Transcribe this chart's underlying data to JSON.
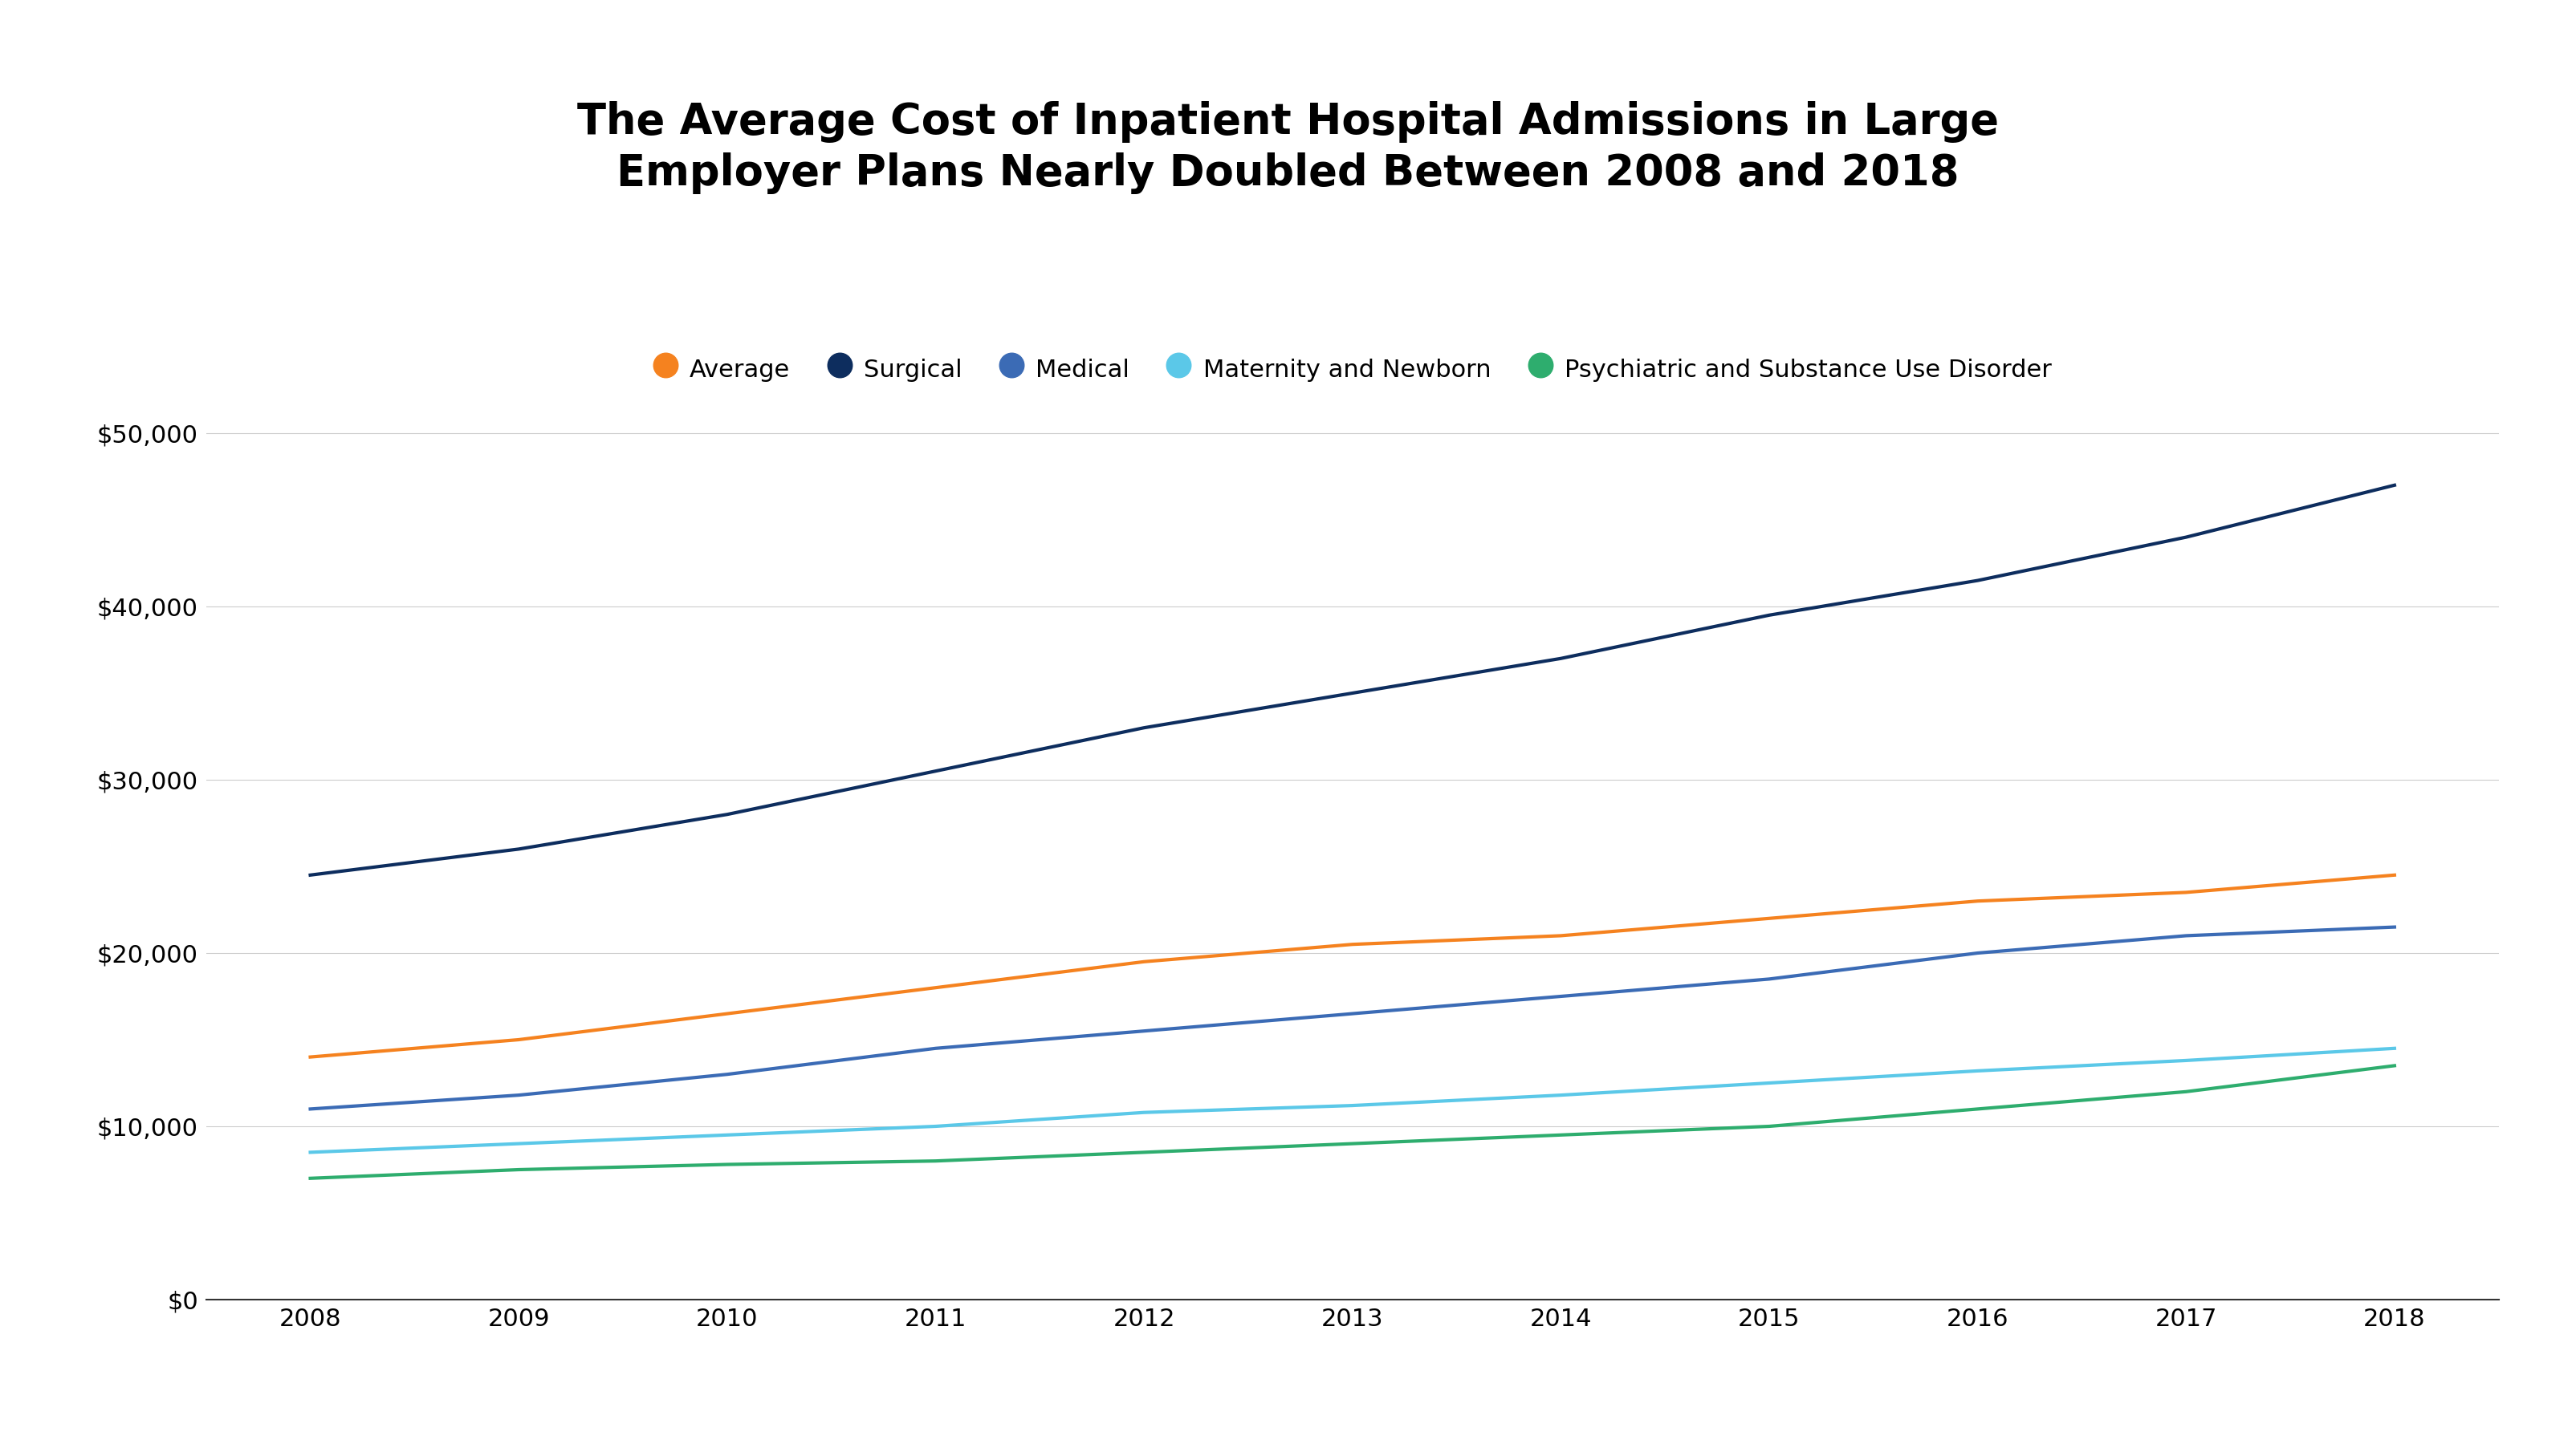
{
  "title": "The Average Cost of Inpatient Hospital Admissions in Large\nEmployer Plans Nearly Doubled Between 2008 and 2018",
  "years": [
    2008,
    2009,
    2010,
    2011,
    2012,
    2013,
    2014,
    2015,
    2016,
    2017,
    2018
  ],
  "series": {
    "Average": {
      "color": "#F5821F",
      "values": [
        14000,
        15000,
        16500,
        18000,
        19500,
        20500,
        21000,
        22000,
        23000,
        23500,
        24500
      ]
    },
    "Surgical": {
      "color": "#0D2D5E",
      "values": [
        24500,
        26000,
        28000,
        30500,
        33000,
        35000,
        37000,
        39500,
        41500,
        44000,
        47000
      ]
    },
    "Medical": {
      "color": "#3B6BB5",
      "values": [
        11000,
        11800,
        13000,
        14500,
        15500,
        16500,
        17500,
        18500,
        20000,
        21000,
        21500
      ]
    },
    "Maternity and Newborn": {
      "color": "#5BC8E8",
      "values": [
        8500,
        9000,
        9500,
        10000,
        10800,
        11200,
        11800,
        12500,
        13200,
        13800,
        14500
      ]
    },
    "Psychiatric and Substance Use Disorder": {
      "color": "#2EAD6E",
      "values": [
        7000,
        7500,
        7800,
        8000,
        8500,
        9000,
        9500,
        10000,
        11000,
        12000,
        13500
      ]
    }
  },
  "series_order": [
    "Average",
    "Surgical",
    "Medical",
    "Maternity and Newborn",
    "Psychiatric and Substance Use Disorder"
  ],
  "ylim": [
    0,
    55000
  ],
  "yticks": [
    0,
    10000,
    20000,
    30000,
    40000,
    50000
  ],
  "xlim": [
    2007.5,
    2018.5
  ],
  "background_color": "#ffffff",
  "line_width": 3.0,
  "title_fontsize": 38,
  "legend_fontsize": 22,
  "tick_fontsize": 22
}
